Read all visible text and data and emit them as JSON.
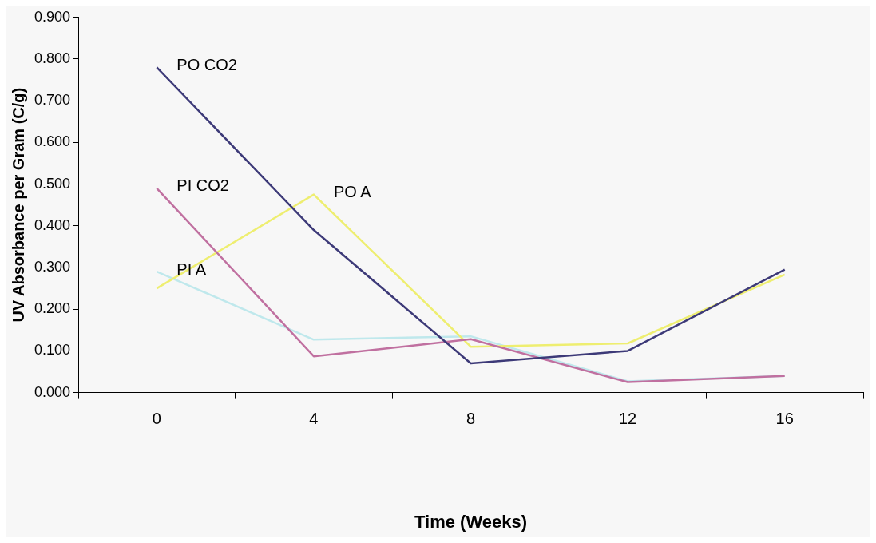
{
  "chart_data": {
    "type": "line",
    "xlabel": "Time (Weeks)",
    "ylabel": "UV Absorbance per Gram (C/g)",
    "categories": [
      "0",
      "4",
      "8",
      "12",
      "16"
    ],
    "ylim": [
      0,
      0.9
    ],
    "yticks": [
      {
        "value": 0,
        "label": "0.000"
      },
      {
        "value": 0.1,
        "label": "0.100"
      },
      {
        "value": 0.2,
        "label": "0.200"
      },
      {
        "value": 0.3,
        "label": "0.300"
      },
      {
        "value": 0.4,
        "label": "0.400"
      },
      {
        "value": 0.5,
        "label": "0.500"
      },
      {
        "value": 0.6,
        "label": "0.600"
      },
      {
        "value": 0.7,
        "label": "0.700"
      },
      {
        "value": 0.8,
        "label": "0.800"
      },
      {
        "value": 0.9,
        "label": "0.900"
      }
    ],
    "grid": false,
    "legend": false,
    "marker": "none",
    "line_style": "solid",
    "series": [
      {
        "name": "PO CO2",
        "color": "#3d3a78",
        "values": [
          0.78,
          0.39,
          0.07,
          0.1,
          0.295
        ]
      },
      {
        "name": "PI CO2",
        "color": "#c070a0",
        "values": [
          0.49,
          0.087,
          0.128,
          0.025,
          0.04
        ]
      },
      {
        "name": "PO A",
        "color": "#eeee70",
        "values": [
          0.25,
          0.475,
          0.11,
          0.118,
          0.283
        ]
      },
      {
        "name": "PI A",
        "color": "#bfe8ec",
        "values": [
          0.29,
          0.127,
          0.135,
          0.027,
          0.04
        ]
      }
    ]
  }
}
